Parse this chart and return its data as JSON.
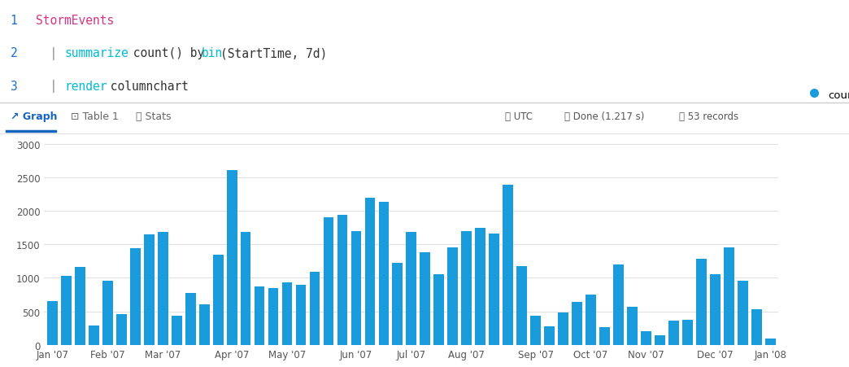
{
  "bar_color": "#1a9bdc",
  "background_color": "#ffffff",
  "grid_color": "#e0e0e0",
  "yticks": [
    0,
    500,
    1000,
    1500,
    2000,
    2500,
    3000
  ],
  "ylim": [
    0,
    3100
  ],
  "legend_label": "count_",
  "values": [
    660,
    1030,
    1160,
    290,
    960,
    460,
    1440,
    1650,
    1690,
    430,
    770,
    610,
    1350,
    2610,
    1680,
    870,
    850,
    930,
    900,
    1090,
    1900,
    1940,
    1700,
    2200,
    2130,
    1220,
    1680,
    1380,
    1060,
    1460,
    1700,
    1750,
    1660,
    2390,
    1170,
    430,
    280,
    490,
    640,
    750,
    260,
    1200,
    570,
    200,
    150,
    360,
    380,
    1290,
    1060,
    1460,
    960,
    530,
    90
  ],
  "xtick_positions": [
    0,
    4,
    8,
    13,
    17,
    22,
    26,
    30,
    35,
    39,
    43,
    48,
    52
  ],
  "xtick_labels": [
    "Jan '07",
    "Feb '07",
    "Mar '07",
    "Apr '07",
    "May '07",
    "Jun '07",
    "Jul '07",
    "Aug '07",
    "Sep '07",
    "Oct '07",
    "Nov '07",
    "Dec '07",
    "Jan '08"
  ],
  "code_line1_num_color": "#1a6dd4",
  "code_line1_text": "StormEvents",
  "code_line1_text_color": "#d63384",
  "code_pipe_color": "#888888",
  "code_keyword_color": "#00bcd4",
  "code_normal_color": "#333333",
  "tab_selected_color": "#1565c0",
  "tab_normal_color": "#666666",
  "separator_color": "#cccccc",
  "grid_separator_color": "#e0e0e0"
}
